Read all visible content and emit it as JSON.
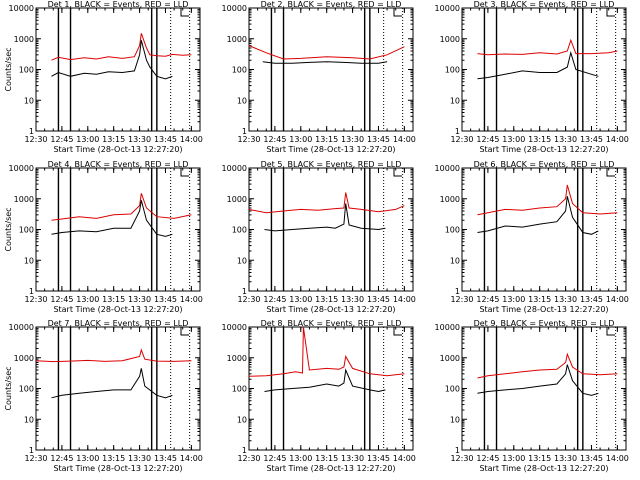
{
  "figure": {
    "background": "#ffffff"
  },
  "colors": {
    "events": "#000000",
    "lld": "#dd0000",
    "axes": "#000000"
  },
  "chart_data": [
    {
      "type": "line",
      "title": "Det 1, BLACK = Events, RED = LLD",
      "xlabel": "Start Time (28-Oct-13 12:27:20)",
      "ylabel": "Counts/sec",
      "xlim": [
        "12:30",
        "14:05"
      ],
      "ylim": [
        1,
        10000
      ],
      "yscale": "log",
      "xticks": [
        "12:30",
        "12:45",
        "13:00",
        "13:15",
        "13:30",
        "13:45",
        "14:00"
      ],
      "yticks": [
        "1",
        "10",
        "100",
        "1000",
        "10000"
      ],
      "vlines": {
        "solid": [
          "12:43",
          "12:50",
          "13:37",
          "13:40"
        ],
        "dotted": [
          "13:48",
          "13:59"
        ]
      },
      "series": [
        {
          "name": "LLD",
          "x": [
            "12:39",
            "12:43",
            "12:50",
            "12:58",
            "13:05",
            "13:12",
            "13:20",
            "13:27",
            "13:30",
            "13:31",
            "13:34",
            "13:36",
            "13:40",
            "13:45",
            "13:49",
            "13:55",
            "14:00"
          ],
          "y": [
            200,
            250,
            210,
            240,
            220,
            260,
            230,
            260,
            600,
            1500,
            500,
            300,
            280,
            270,
            310,
            290,
            300
          ]
        },
        {
          "name": "Events",
          "x": [
            "12:39",
            "12:43",
            "12:50",
            "12:58",
            "13:05",
            "13:12",
            "13:20",
            "13:27",
            "13:30",
            "13:31",
            "13:34",
            "13:36",
            "13:40",
            "13:45",
            "13:49"
          ],
          "y": [
            60,
            80,
            60,
            75,
            70,
            85,
            80,
            90,
            300,
            900,
            200,
            120,
            60,
            50,
            60
          ]
        }
      ]
    },
    {
      "type": "line",
      "title": "Det 2, BLACK = Events, RED = LLD",
      "xlabel": "Start Time (28-Oct-13 12:27:20)",
      "ylabel": "",
      "xlim": [
        "12:30",
        "14:05"
      ],
      "ylim": [
        1,
        10000
      ],
      "yscale": "log",
      "xticks": [
        "12:30",
        "12:45",
        "13:00",
        "13:15",
        "13:30",
        "13:45",
        "14:00"
      ],
      "yticks": [
        "1",
        "10",
        "100",
        "1000",
        "10000"
      ],
      "vlines": {
        "solid": [
          "12:43",
          "12:50",
          "13:37",
          "13:40"
        ],
        "dotted": [
          "13:48",
          "13:59"
        ]
      },
      "series": [
        {
          "name": "LLD",
          "x": [
            "12:30",
            "12:40",
            "12:50",
            "13:00",
            "13:15",
            "13:30",
            "13:40",
            "13:50",
            "14:00"
          ],
          "y": [
            600,
            350,
            220,
            230,
            260,
            240,
            220,
            300,
            550
          ]
        },
        {
          "name": "Events",
          "x": [
            "12:38",
            "12:45",
            "12:55",
            "13:05",
            "13:15",
            "13:25",
            "13:35",
            "13:45",
            "13:50"
          ],
          "y": [
            180,
            160,
            160,
            170,
            180,
            170,
            160,
            160,
            180
          ]
        }
      ]
    },
    {
      "type": "line",
      "title": "Det 3, BLACK = Events, RED = LLD",
      "xlabel": "Start Time (28-Oct-13 12:27:20)",
      "ylabel": "",
      "xlim": [
        "12:30",
        "14:05"
      ],
      "ylim": [
        1,
        10000
      ],
      "yscale": "log",
      "xticks": [
        "12:30",
        "12:45",
        "13:00",
        "13:15",
        "13:30",
        "13:45",
        "14:00"
      ],
      "yticks": [
        "1",
        "10",
        "100",
        "1000",
        "10000"
      ],
      "vlines": {
        "solid": [
          "12:43",
          "12:50",
          "13:37",
          "13:40"
        ],
        "dotted": [
          "13:48",
          "13:59"
        ]
      },
      "series": [
        {
          "name": "LLD",
          "x": [
            "12:39",
            "12:45",
            "12:55",
            "13:05",
            "13:15",
            "13:25",
            "13:31",
            "13:33",
            "13:36",
            "13:45",
            "13:55",
            "14:00"
          ],
          "y": [
            330,
            300,
            320,
            310,
            350,
            320,
            400,
            900,
            330,
            330,
            350,
            400
          ]
        },
        {
          "name": "Events",
          "x": [
            "12:39",
            "12:45",
            "12:55",
            "13:05",
            "13:15",
            "13:25",
            "13:31",
            "13:33",
            "13:36",
            "13:45",
            "13:49"
          ],
          "y": [
            50,
            55,
            70,
            90,
            80,
            80,
            120,
            350,
            100,
            70,
            60
          ]
        }
      ]
    },
    {
      "type": "line",
      "title": "Det 4, BLACK = Events, RED = LLD",
      "xlabel": "Start Time (28-Oct-13 12:27:20)",
      "ylabel": "Counts/sec",
      "xlim": [
        "12:30",
        "14:05"
      ],
      "ylim": [
        1,
        10000
      ],
      "yscale": "log",
      "xticks": [
        "12:30",
        "12:45",
        "13:00",
        "13:15",
        "13:30",
        "13:45",
        "14:00"
      ],
      "yticks": [
        "1",
        "10",
        "100",
        "1000",
        "10000"
      ],
      "vlines": {
        "solid": [
          "12:43",
          "12:50",
          "13:37",
          "13:40"
        ],
        "dotted": [
          "13:48",
          "13:59"
        ]
      },
      "series": [
        {
          "name": "LLD",
          "x": [
            "12:39",
            "12:45",
            "12:55",
            "13:05",
            "13:15",
            "13:25",
            "13:30",
            "13:31",
            "13:34",
            "13:40",
            "13:50",
            "14:00"
          ],
          "y": [
            200,
            220,
            260,
            230,
            300,
            320,
            600,
            1500,
            500,
            260,
            230,
            300
          ]
        },
        {
          "name": "Events",
          "x": [
            "12:39",
            "12:45",
            "12:55",
            "13:05",
            "13:15",
            "13:25",
            "13:30",
            "13:31",
            "13:34",
            "13:40",
            "13:45",
            "13:49"
          ],
          "y": [
            70,
            80,
            90,
            85,
            110,
            110,
            400,
            900,
            200,
            70,
            60,
            70
          ]
        }
      ]
    },
    {
      "type": "line",
      "title": "Det 5, BLACK = Events, RED = LLD",
      "xlabel": "Start Time (28-Oct-13 12:27:20)",
      "ylabel": "",
      "xlim": [
        "12:30",
        "14:05"
      ],
      "ylim": [
        1,
        10000
      ],
      "yscale": "log",
      "xticks": [
        "12:30",
        "12:45",
        "13:00",
        "13:15",
        "13:30",
        "13:45",
        "14:00"
      ],
      "yticks": [
        "1",
        "10",
        "100",
        "1000",
        "10000"
      ],
      "vlines": {
        "solid": [
          "12:43",
          "12:50",
          "13:37",
          "13:40"
        ],
        "dotted": [
          "13:48",
          "13:59"
        ]
      },
      "series": [
        {
          "name": "LLD",
          "x": [
            "12:30",
            "12:40",
            "12:50",
            "13:00",
            "13:10",
            "13:20",
            "13:25",
            "13:26",
            "13:28",
            "13:35",
            "13:45",
            "13:55",
            "14:00"
          ],
          "y": [
            450,
            350,
            400,
            450,
            420,
            480,
            500,
            1600,
            500,
            450,
            380,
            450,
            600
          ]
        },
        {
          "name": "Events",
          "x": [
            "12:39",
            "12:45",
            "12:55",
            "13:05",
            "13:15",
            "13:20",
            "13:25",
            "13:26",
            "13:28",
            "13:35",
            "13:45",
            "13:49"
          ],
          "y": [
            100,
            90,
            100,
            110,
            120,
            110,
            150,
            700,
            140,
            110,
            100,
            110
          ]
        }
      ]
    },
    {
      "type": "line",
      "title": "Det 6, BLACK = Events, RED = LLD",
      "xlabel": "Start Time (28-Oct-13 12:27:20)",
      "ylabel": "",
      "xlim": [
        "12:30",
        "14:05"
      ],
      "ylim": [
        1,
        10000
      ],
      "yscale": "log",
      "xticks": [
        "12:30",
        "12:45",
        "13:00",
        "13:15",
        "13:30",
        "13:45",
        "14:00"
      ],
      "yticks": [
        "1",
        "10",
        "100",
        "1000",
        "10000"
      ],
      "vlines": {
        "solid": [
          "12:43",
          "12:50",
          "13:37",
          "13:40"
        ],
        "dotted": [
          "13:48",
          "13:59"
        ]
      },
      "series": [
        {
          "name": "LLD",
          "x": [
            "12:39",
            "12:45",
            "12:55",
            "13:05",
            "13:15",
            "13:25",
            "13:30",
            "13:31",
            "13:34",
            "13:40",
            "13:50",
            "14:00"
          ],
          "y": [
            300,
            350,
            450,
            420,
            500,
            550,
            1000,
            2800,
            700,
            350,
            320,
            350
          ]
        },
        {
          "name": "Events",
          "x": [
            "12:39",
            "12:45",
            "12:55",
            "13:05",
            "13:15",
            "13:25",
            "13:30",
            "13:31",
            "13:34",
            "13:40",
            "13:45",
            "13:49"
          ],
          "y": [
            80,
            90,
            130,
            120,
            150,
            180,
            400,
            1200,
            250,
            80,
            70,
            90
          ]
        }
      ]
    },
    {
      "type": "line",
      "title": "Det 7, BLACK = Events, RED = LLD",
      "xlabel": "Start Time (28-Oct-13 12:27:20)",
      "ylabel": "Counts/sec",
      "xlim": [
        "12:30",
        "14:05"
      ],
      "ylim": [
        1,
        10000
      ],
      "yscale": "log",
      "xticks": [
        "12:30",
        "12:45",
        "13:00",
        "13:15",
        "13:30",
        "13:45",
        "14:00"
      ],
      "yticks": [
        "1",
        "10",
        "100",
        "1000",
        "10000"
      ],
      "vlines": {
        "solid": [
          "12:43",
          "12:50",
          "13:37",
          "13:40"
        ],
        "dotted": [
          "13:48",
          "13:59"
        ]
      },
      "series": [
        {
          "name": "LLD",
          "x": [
            "12:30",
            "12:40",
            "12:50",
            "13:00",
            "13:10",
            "13:20",
            "13:30",
            "13:31",
            "13:33",
            "13:40",
            "13:50",
            "14:00"
          ],
          "y": [
            800,
            750,
            780,
            820,
            760,
            800,
            1100,
            1800,
            900,
            780,
            760,
            800
          ]
        },
        {
          "name": "Events",
          "x": [
            "12:39",
            "12:45",
            "12:55",
            "13:05",
            "13:15",
            "13:25",
            "13:30",
            "13:31",
            "13:33",
            "13:40",
            "13:45",
            "13:49"
          ],
          "y": [
            50,
            60,
            70,
            80,
            90,
            90,
            250,
            450,
            120,
            60,
            50,
            60
          ]
        }
      ]
    },
    {
      "type": "line",
      "title": "Det 8, BLACK = Events, RED = LLD",
      "xlabel": "Start Time (28-Oct-13 12:27:20)",
      "ylabel": "",
      "xlim": [
        "12:30",
        "14:05"
      ],
      "ylim": [
        1,
        10000
      ],
      "yscale": "log",
      "xticks": [
        "12:30",
        "12:45",
        "13:00",
        "13:15",
        "13:30",
        "13:45",
        "14:00"
      ],
      "yticks": [
        "1",
        "10",
        "100",
        "1000",
        "10000"
      ],
      "vlines": {
        "solid": [
          "12:43",
          "12:50",
          "13:37",
          "13:40"
        ],
        "dotted": [
          "13:48",
          "13:59"
        ]
      },
      "series": [
        {
          "name": "LLD",
          "x": [
            "12:30",
            "12:40",
            "12:50",
            "12:57",
            "13:01",
            "13:01.5",
            "13:05",
            "13:15",
            "13:22",
            "13:25",
            "13:26",
            "13:30",
            "13:40",
            "13:50",
            "14:00"
          ],
          "y": [
            250,
            260,
            300,
            350,
            320,
            10000,
            400,
            450,
            420,
            500,
            1100,
            450,
            300,
            260,
            300
          ]
        },
        {
          "name": "Events",
          "x": [
            "12:39",
            "12:45",
            "12:55",
            "13:05",
            "13:15",
            "13:22",
            "13:25",
            "13:26",
            "13:30",
            "13:40",
            "13:45",
            "13:49"
          ],
          "y": [
            80,
            90,
            100,
            110,
            140,
            120,
            150,
            400,
            120,
            90,
            80,
            90
          ]
        }
      ]
    },
    {
      "type": "line",
      "title": "Det 9, BLACK = Events, RED = LLD",
      "xlabel": "Start Time (28-Oct-13 12:27:20)",
      "ylabel": "",
      "xlim": [
        "12:30",
        "14:05"
      ],
      "ylim": [
        1,
        10000
      ],
      "yscale": "log",
      "xticks": [
        "12:30",
        "12:45",
        "13:00",
        "13:15",
        "13:30",
        "13:45",
        "14:00"
      ],
      "yticks": [
        "1",
        "10",
        "100",
        "1000",
        "10000"
      ],
      "vlines": {
        "solid": [
          "12:43",
          "12:50",
          "13:37",
          "13:40"
        ],
        "dotted": [
          "13:48",
          "13:59"
        ]
      },
      "series": [
        {
          "name": "LLD",
          "x": [
            "12:39",
            "12:45",
            "12:55",
            "13:05",
            "13:15",
            "13:25",
            "13:30",
            "13:31",
            "13:34",
            "13:40",
            "13:50",
            "14:00"
          ],
          "y": [
            220,
            260,
            300,
            350,
            400,
            420,
            700,
            1300,
            500,
            300,
            280,
            300
          ]
        },
        {
          "name": "Events",
          "x": [
            "12:39",
            "12:45",
            "12:55",
            "13:05",
            "13:15",
            "13:25",
            "13:30",
            "13:31",
            "13:34",
            "13:40",
            "13:45",
            "13:49"
          ],
          "y": [
            70,
            80,
            90,
            100,
            120,
            140,
            300,
            600,
            180,
            70,
            60,
            70
          ]
        }
      ]
    }
  ]
}
